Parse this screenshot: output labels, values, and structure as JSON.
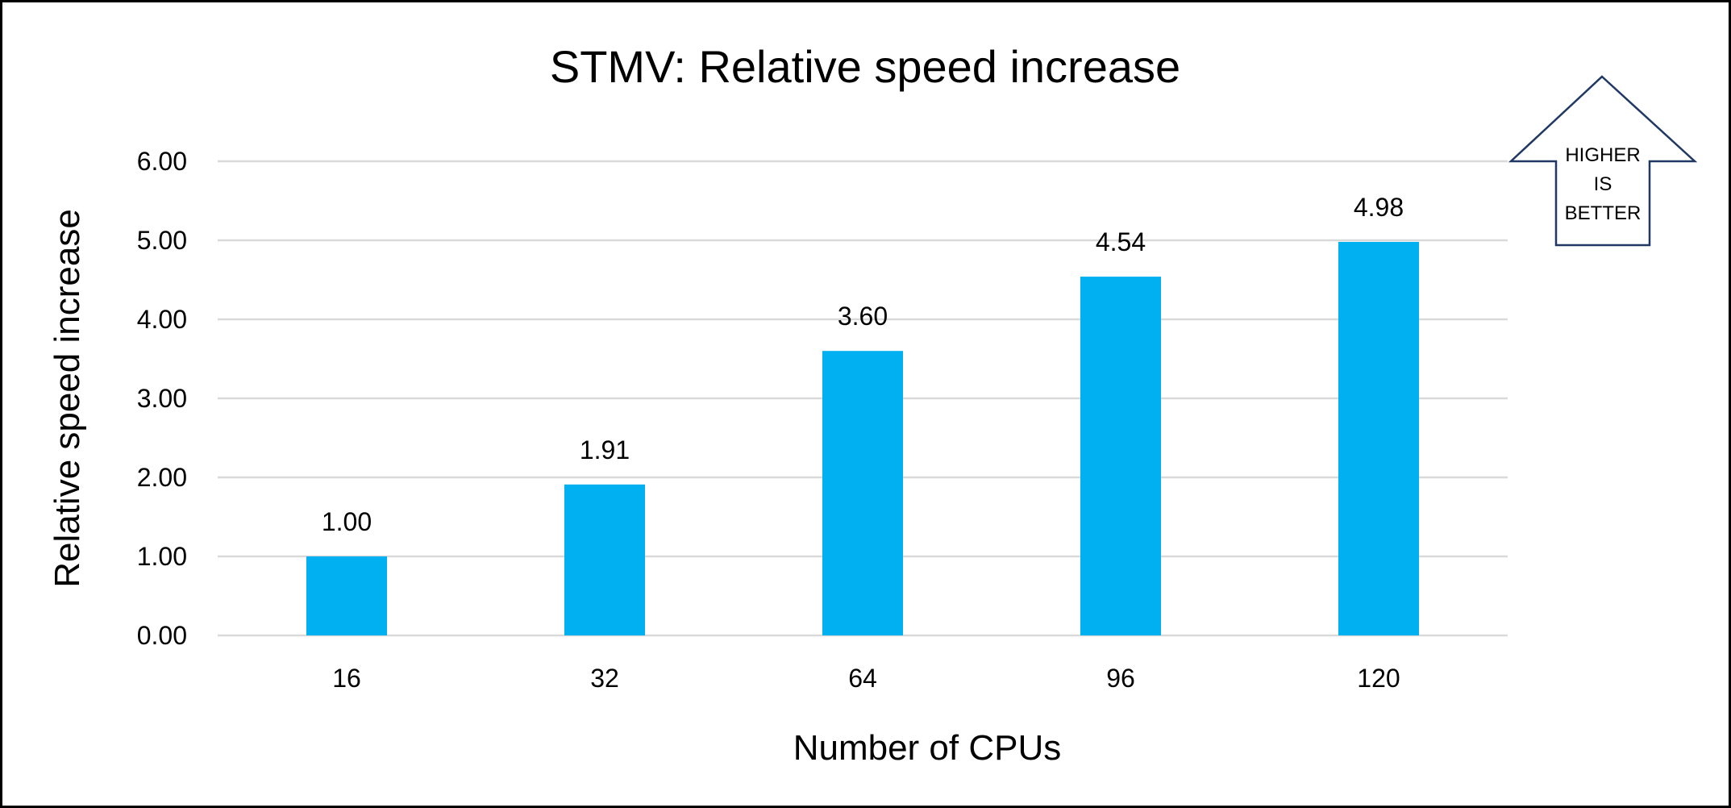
{
  "chart_data": {
    "type": "bar",
    "title": "STMV: Relative speed increase",
    "xlabel": "Number of CPUs",
    "ylabel": "Relative speed increase",
    "categories": [
      "16",
      "32",
      "64",
      "96",
      "120"
    ],
    "values": [
      1.0,
      1.91,
      3.6,
      4.54,
      4.98
    ],
    "data_labels": [
      "1.00",
      "1.91",
      "3.60",
      "4.54",
      "4.98"
    ],
    "ylim": [
      0,
      6
    ],
    "yticks": [
      "0.00",
      "1.00",
      "2.00",
      "3.00",
      "4.00",
      "5.00",
      "6.00"
    ],
    "grid": true,
    "legend": "none",
    "bar_color": "#00B0F0",
    "gridline_color": "#D9D9D9",
    "annotation": {
      "shape": "up-arrow",
      "lines": [
        "HIGHER",
        "IS",
        "BETTER"
      ]
    }
  }
}
